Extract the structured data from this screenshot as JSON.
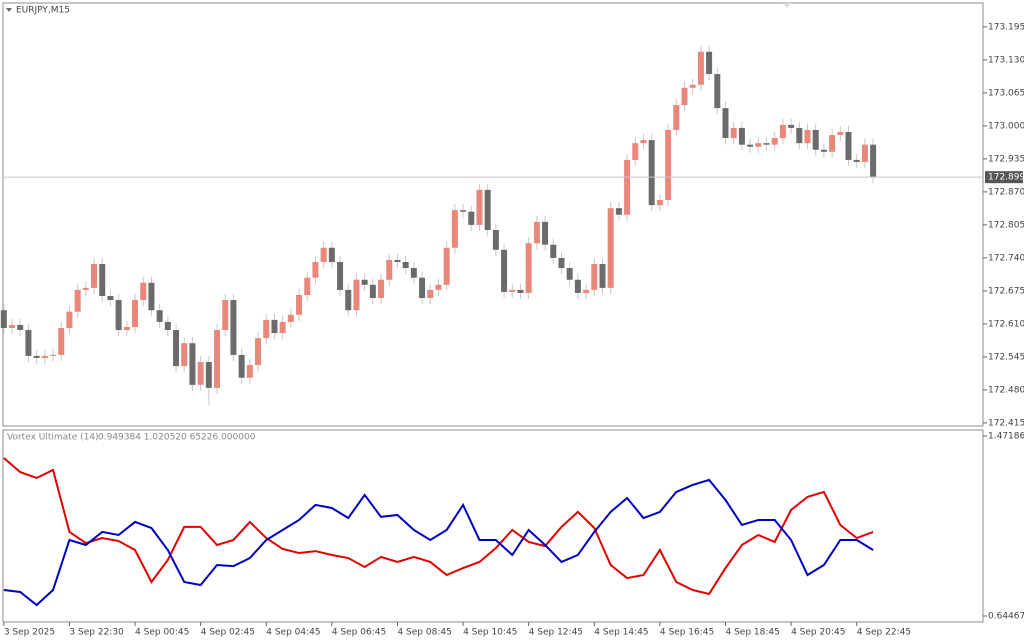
{
  "chart_data": [
    {
      "type": "candlestick",
      "title": "EURJPY,M15",
      "open": [
        172.637,
        172.602,
        172.608,
        172.598,
        172.547,
        172.543,
        172.547,
        172.549,
        172.602,
        172.634,
        172.677,
        172.681,
        172.728,
        172.665,
        172.657,
        172.598,
        172.604,
        172.657,
        172.691,
        172.637,
        172.614,
        172.598,
        172.527,
        172.572,
        172.49,
        172.535,
        172.484,
        172.598,
        172.657,
        172.549,
        172.504,
        172.529,
        172.582,
        172.618,
        172.592,
        172.614,
        172.628,
        172.667,
        172.701,
        172.732,
        172.76,
        172.732,
        172.677,
        172.637,
        172.697,
        172.687,
        172.661,
        172.697,
        172.736,
        172.732,
        172.72,
        172.701,
        172.661,
        172.677,
        172.687,
        172.76,
        172.834,
        172.831,
        172.805,
        172.874,
        172.795,
        172.756,
        172.673,
        172.677,
        172.671,
        172.769,
        172.811,
        172.766,
        172.74,
        172.72,
        172.697,
        172.671,
        172.677,
        172.728,
        172.681,
        172.838,
        172.825,
        172.933,
        172.966,
        172.972,
        172.844,
        172.854,
        172.992,
        173.041,
        173.075,
        173.081,
        173.146,
        173.102,
        173.035,
        172.976,
        172.996,
        172.963,
        172.959,
        172.966,
        172.963,
        172.976,
        173.002,
        172.996,
        172.966,
        172.992,
        172.953,
        172.949,
        172.982,
        172.988,
        172.933,
        172.929,
        172.963
      ],
      "high": [
        172.649,
        172.62,
        172.62,
        172.61,
        172.559,
        172.559,
        172.561,
        172.614,
        172.646,
        172.689,
        172.693,
        172.74,
        172.74,
        172.677,
        172.669,
        172.616,
        172.669,
        172.703,
        172.703,
        172.649,
        172.626,
        172.61,
        172.584,
        172.584,
        172.547,
        172.547,
        172.61,
        172.669,
        172.669,
        172.561,
        172.541,
        172.594,
        172.63,
        172.63,
        172.626,
        172.64,
        172.679,
        172.713,
        172.744,
        172.772,
        172.772,
        172.744,
        172.689,
        172.709,
        172.709,
        172.699,
        172.709,
        172.748,
        172.748,
        172.744,
        172.732,
        172.713,
        172.689,
        172.699,
        172.772,
        172.846,
        172.846,
        172.843,
        172.886,
        172.886,
        172.807,
        172.768,
        172.689,
        172.689,
        172.781,
        172.823,
        172.823,
        172.778,
        172.752,
        172.732,
        172.709,
        172.689,
        172.74,
        172.74,
        172.85,
        172.85,
        172.945,
        172.978,
        172.984,
        172.984,
        172.866,
        173.004,
        173.053,
        173.087,
        173.093,
        173.158,
        173.158,
        173.114,
        173.047,
        173.008,
        173.008,
        172.975,
        172.978,
        172.978,
        172.988,
        173.014,
        173.014,
        173.008,
        173.004,
        173.004,
        172.965,
        172.994,
        173,
        173,
        172.945,
        172.975,
        172.975
      ],
      "low": [
        172.59,
        172.59,
        172.586,
        172.535,
        172.531,
        172.531,
        172.537,
        172.537,
        172.59,
        172.622,
        172.665,
        172.669,
        172.653,
        172.645,
        172.586,
        172.586,
        172.592,
        172.645,
        172.625,
        172.602,
        172.586,
        172.515,
        172.515,
        172.478,
        172.478,
        172.45,
        172.472,
        172.586,
        172.537,
        172.492,
        172.492,
        172.517,
        172.57,
        172.58,
        172.58,
        172.602,
        172.616,
        172.655,
        172.689,
        172.72,
        172.72,
        172.665,
        172.625,
        172.625,
        172.675,
        172.649,
        172.649,
        172.685,
        172.72,
        172.708,
        172.689,
        172.649,
        172.649,
        172.665,
        172.675,
        172.748,
        172.819,
        172.793,
        172.793,
        172.783,
        172.744,
        172.661,
        172.661,
        172.659,
        172.659,
        172.757,
        172.754,
        172.728,
        172.708,
        172.685,
        172.659,
        172.659,
        172.665,
        172.669,
        172.669,
        172.813,
        172.813,
        172.921,
        172.954,
        172.832,
        172.832,
        172.842,
        172.98,
        173.029,
        173.063,
        173.069,
        173.09,
        173.023,
        172.964,
        172.964,
        172.951,
        172.947,
        172.947,
        172.951,
        172.951,
        172.964,
        172.984,
        172.954,
        172.954,
        172.941,
        172.937,
        172.937,
        172.97,
        172.921,
        172.917,
        172.917,
        172.887
      ],
      "close": [
        172.602,
        172.608,
        172.598,
        172.547,
        172.543,
        172.547,
        172.549,
        172.602,
        172.634,
        172.677,
        172.681,
        172.728,
        172.665,
        172.657,
        172.598,
        172.604,
        172.657,
        172.691,
        172.637,
        172.614,
        172.598,
        172.527,
        172.572,
        172.49,
        172.535,
        172.484,
        172.598,
        172.657,
        172.549,
        172.504,
        172.529,
        172.582,
        172.618,
        172.592,
        172.614,
        172.628,
        172.667,
        172.701,
        172.732,
        172.76,
        172.732,
        172.677,
        172.637,
        172.697,
        172.687,
        172.661,
        172.697,
        172.736,
        172.732,
        172.72,
        172.701,
        172.661,
        172.677,
        172.687,
        172.76,
        172.834,
        172.831,
        172.805,
        172.874,
        172.795,
        172.756,
        172.673,
        172.677,
        172.671,
        172.769,
        172.811,
        172.766,
        172.74,
        172.72,
        172.697,
        172.671,
        172.677,
        172.728,
        172.681,
        172.838,
        172.825,
        172.933,
        172.966,
        172.972,
        172.844,
        172.854,
        172.992,
        173.041,
        173.075,
        173.081,
        173.146,
        173.102,
        173.035,
        172.976,
        172.996,
        172.963,
        172.959,
        172.966,
        172.963,
        172.976,
        173.002,
        172.996,
        172.966,
        172.992,
        172.953,
        172.949,
        172.982,
        172.988,
        172.933,
        172.929,
        172.963,
        172.899
      ],
      "bull_color": "#e8877a",
      "bear_color": "#6b6b6b",
      "ylim": [
        172.409,
        173.242
      ],
      "xlim": [
        -0.1,
        119.4
      ],
      "yticks": [
        173.195,
        {
          "value": 173.13,
          "label": "173.130"
        },
        173.065,
        {
          "value": 173,
          "label": "173.000"
        },
        172.935,
        {
          "value": 172.87,
          "label": "172.870"
        },
        172.805,
        {
          "value": 172.74,
          "label": "172.740"
        },
        172.675,
        {
          "value": 172.61,
          "label": "172.610"
        },
        172.545,
        {
          "value": 172.48,
          "label": "172.480"
        },
        172.415
      ],
      "last_price": 172.899
    },
    {
      "type": "line",
      "title": "Vortex Ultimate (14)",
      "readout": "0.949384 1.020520 65226.000000",
      "x": [
        0,
        2,
        4,
        6,
        8,
        10,
        12,
        14,
        16,
        18,
        20,
        22,
        24,
        26,
        28,
        30,
        32,
        34,
        36,
        38,
        40,
        42,
        44,
        46,
        48,
        50,
        52,
        54,
        56,
        58,
        60,
        62,
        64,
        66,
        68,
        70,
        72,
        74,
        76,
        78,
        80,
        82,
        84,
        86,
        88,
        90,
        92,
        94,
        96,
        98,
        100,
        102,
        104,
        106
      ],
      "series": [
        {
          "color": "#e00000",
          "values": [
            1.371,
            1.306,
            1.279,
            1.316,
            1.031,
            0.98,
            1.003,
            0.989,
            0.948,
            0.801,
            0.902,
            1.054,
            1.054,
            0.971,
            0.994,
            1.077,
            1.003,
            0.953,
            0.934,
            0.943,
            0.925,
            0.911,
            0.87,
            0.916,
            0.893,
            0.916,
            0.893,
            0.833,
            0.865,
            0.893,
            0.957,
            1.04,
            0.985,
            0.966,
            1.054,
            1.123,
            1.049,
            0.879,
            0.819,
            0.833,
            0.948,
            0.801,
            0.764,
            0.746,
            0.865,
            0.971,
            1.017,
            0.985,
            1.132,
            1.192,
            1.215,
            1.063,
            1.003,
            1.031
          ]
        },
        {
          "color": "#0000c0",
          "values": [
            0.764,
            0.755,
            0.695,
            0.764,
            0.994,
            0.971,
            1.031,
            1.017,
            1.077,
            1.049,
            0.948,
            0.801,
            0.787,
            0.879,
            0.874,
            0.911,
            0.994,
            1.04,
            1.086,
            1.155,
            1.141,
            1.095,
            1.201,
            1.1,
            1.109,
            1.04,
            0.994,
            1.04,
            1.155,
            0.994,
            0.994,
            0.925,
            1.04,
            0.971,
            0.893,
            0.925,
            1.031,
            1.123,
            1.187,
            1.095,
            1.123,
            1.215,
            1.247,
            1.27,
            1.178,
            1.063,
            1.086,
            1.086,
            0.994,
            0.833,
            0.879,
            0.994,
            0.994,
            0.948
          ]
        }
      ],
      "ylim": [
        0.644671,
        1.471863
      ],
      "yticks": [
        0.644671,
        1.471863
      ],
      "xlim": [
        -0.1,
        119.4
      ],
      "xticks": [
        {
          "value": 0,
          "label": "3 Sep 2025"
        },
        {
          "value": 8,
          "label": "3 Sep 22:30"
        },
        {
          "value": 16,
          "label": "4 Sep 00:45"
        },
        {
          "value": 24,
          "label": "4 Sep 02:45"
        },
        {
          "value": 32,
          "label": "4 Sep 04:45"
        },
        {
          "value": 40,
          "label": "4 Sep 06:45"
        },
        {
          "value": 48,
          "label": "4 Sep 08:45"
        },
        {
          "value": 56,
          "label": "4 Sep 10:45"
        },
        {
          "value": 64,
          "label": "4 Sep 12:45"
        },
        {
          "value": 72,
          "label": "4 Sep 14:45"
        },
        {
          "value": 80,
          "label": "4 Sep 16:45"
        },
        {
          "value": 88,
          "label": "4 Sep 18:45"
        },
        {
          "value": 96,
          "label": "4 Sep 20:45"
        },
        {
          "value": 104,
          "label": "4 Sep 22:45"
        }
      ]
    }
  ]
}
